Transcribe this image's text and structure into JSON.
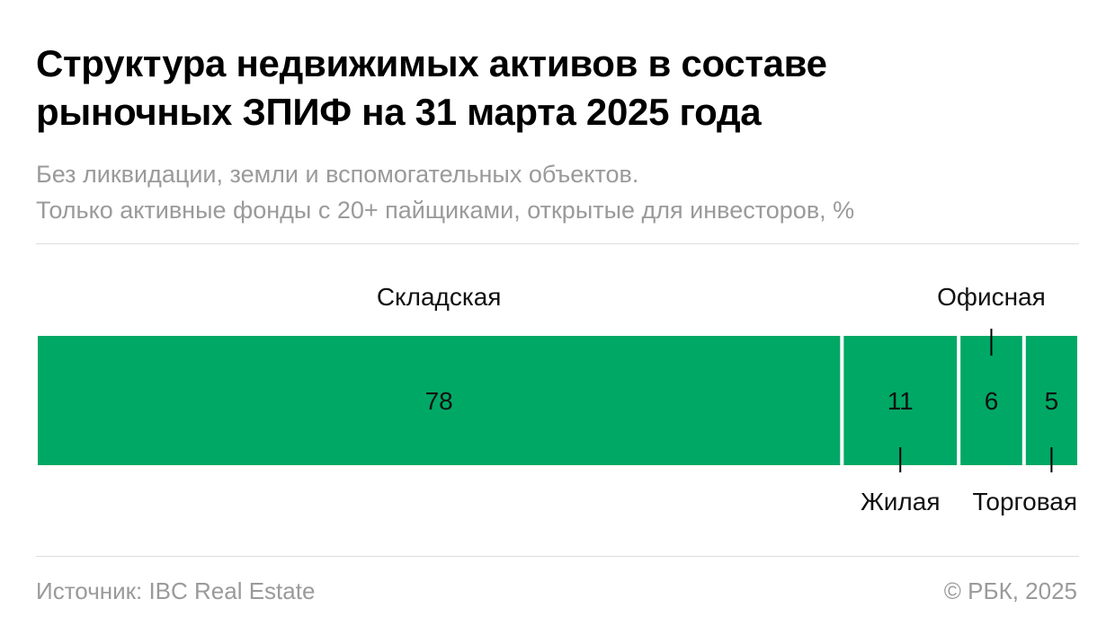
{
  "header": {
    "title_line1": "Структура недвижимых активов в составе",
    "title_line2": "рыночных ЗПИФ на 31 марта 2025 года",
    "subtitle_line1": "Без ликвидации, земли и вспомогательных объектов.",
    "subtitle_line2": "Только активные фонды с 20+ пайщиками, открытые для инвесторов, %"
  },
  "footer": {
    "source": "Источник: IBC Real Estate",
    "copyright": "© РБК, 2025"
  },
  "colors": {
    "bar": "#00a865",
    "text": "#111111",
    "muted": "#9a9a9a",
    "rule": "#dddddd"
  },
  "chart_data": {
    "type": "bar",
    "orientation": "horizontal-stacked-100",
    "unit": "%",
    "categories": [
      "Складская",
      "Жилая",
      "Офисная",
      "Торговая"
    ],
    "values": [
      78,
      11,
      6,
      5
    ],
    "label_placement": [
      "top",
      "bottom",
      "top",
      "bottom"
    ],
    "grid": false,
    "legend": "none"
  }
}
